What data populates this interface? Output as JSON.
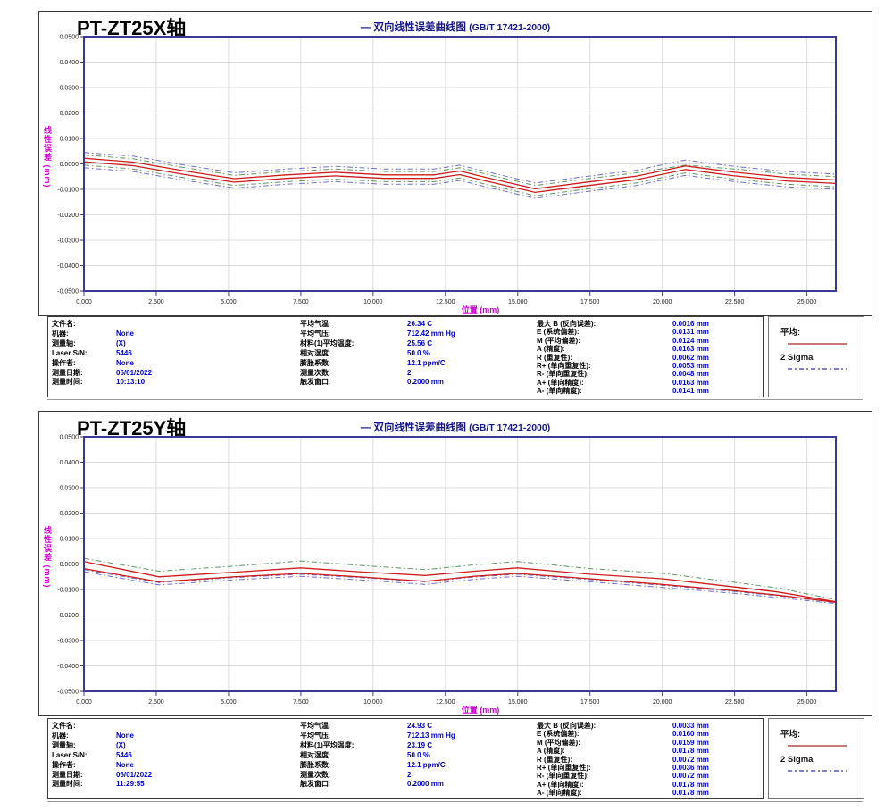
{
  "page": {
    "background": "#ffffff"
  },
  "panels": [
    {
      "axis_title": "PT-ZT25X轴",
      "chart_title": "— 双向线性误差曲线图",
      "chart_title_suffix": "(GB/T 17421-2000)",
      "ylabel": "线性误差 (mm)",
      "xlabel": "位置 (mm)",
      "legend": {
        "mean_label": "平均:",
        "sigma_label": "2 Sigma"
      },
      "info_left": [
        {
          "label": "文件名:",
          "value": ""
        },
        {
          "label": "机器:",
          "value": "None"
        },
        {
          "label": "测量轴:",
          "value": "(X)"
        },
        {
          "label": "Laser S/N:",
          "value": "5446"
        },
        {
          "label": "操作者:",
          "value": "None"
        },
        {
          "label": "测量日期:",
          "value": "06/01/2022"
        },
        {
          "label": "测量时间:",
          "value": "10:13:10"
        }
      ],
      "info_mid": [
        {
          "label": "平均气温:",
          "value": "26.34 C"
        },
        {
          "label": "平均气压:",
          "value": "712.42 mm Hg"
        },
        {
          "label": "材料(1)平均温度:",
          "value": "25.56 C"
        },
        {
          "label": "相对湿度:",
          "value": "50.0 %"
        },
        {
          "label": "膨胀系数:",
          "value": "12.1 ppm/C"
        },
        {
          "label": "测量次数:",
          "value": "2"
        },
        {
          "label": "触发窗口:",
          "value": "0.2000 mm"
        }
      ],
      "info_right": [
        {
          "label": "最大 B (反向误差):",
          "value": "0.0016 mm"
        },
        {
          "label": "E (系统偏差):",
          "value": "0.0131 mm"
        },
        {
          "label": "M (平均偏差):",
          "value": "0.0124 mm"
        },
        {
          "label": "A (精度):",
          "value": "0.0163 mm"
        },
        {
          "label": "R (重复性):",
          "value": "0.0062 mm"
        },
        {
          "label": "R+ (单向重复性):",
          "value": "0.0053 mm"
        },
        {
          "label": "R- (单向重复性):",
          "value": "0.0048 mm"
        },
        {
          "label": "A+ (单向精度):",
          "value": "0.0163 mm"
        },
        {
          "label": "A- (单向精度):",
          "value": "0.0141 mm"
        }
      ]
    },
    {
      "axis_title": "PT-ZT25Y轴",
      "chart_title": "— 双向线性误差曲线图",
      "chart_title_suffix": "(GB/T 17421-2000)",
      "ylabel": "线性误差 (mm)",
      "xlabel": "位置 (mm)",
      "legend": {
        "mean_label": "平均:",
        "sigma_label": "2 Sigma"
      },
      "info_left": [
        {
          "label": "文件名:",
          "value": ""
        },
        {
          "label": "机器:",
          "value": "None"
        },
        {
          "label": "测量轴:",
          "value": "(X)"
        },
        {
          "label": "Laser S/N:",
          "value": "5446"
        },
        {
          "label": "操作者:",
          "value": "None"
        },
        {
          "label": "测量日期:",
          "value": "06/01/2022"
        },
        {
          "label": "测量时间:",
          "value": "11:29:55"
        }
      ],
      "info_mid": [
        {
          "label": "平均气温:",
          "value": "24.93 C"
        },
        {
          "label": "平均气压:",
          "value": "712.13 mm Hg"
        },
        {
          "label": "材料(1)平均温度:",
          "value": "23.19 C"
        },
        {
          "label": "相对湿度:",
          "value": "50.0 %"
        },
        {
          "label": "膨胀系数:",
          "value": "12.1 ppm/C"
        },
        {
          "label": "测量次数:",
          "value": "2"
        },
        {
          "label": "触发窗口:",
          "value": "0.2000 mm"
        }
      ],
      "info_right": [
        {
          "label": "最大 B (反向误差):",
          "value": "0.0033 mm"
        },
        {
          "label": "E (系统偏差):",
          "value": "0.0160 mm"
        },
        {
          "label": "M (平均偏差):",
          "value": "0.0159 mm"
        },
        {
          "label": "A (精度):",
          "value": "0.0178 mm"
        },
        {
          "label": "R (重复性):",
          "value": "0.0072 mm"
        },
        {
          "label": "R+ (单向重复性):",
          "value": "0.0036 mm"
        },
        {
          "label": "R- (单向重复性):",
          "value": "0.0072 mm"
        },
        {
          "label": "A+ (单向精度):",
          "value": "0.0178 mm"
        },
        {
          "label": "A- (单向精度):",
          "value": "0.0178 mm"
        }
      ]
    }
  ],
  "chart_data": [
    {
      "type": "line",
      "title": "— 双向线性误差曲线图 (GB/T 17421-2000)",
      "xlabel": "位置 (mm)",
      "ylabel": "线性误差 (mm)",
      "xlim": [
        0,
        26
      ],
      "ylim": [
        -0.05,
        0.05
      ],
      "xtick_step": 2.5,
      "xtick_max": 25,
      "ytick_step": 0.01,
      "grid": true,
      "legend_position": "below-right",
      "colors": {
        "border": "#3a3a94",
        "grid": "#dcdcdc"
      },
      "x": [
        0,
        1.7,
        3.5,
        5.2,
        7.0,
        8.7,
        10.4,
        12.1,
        13.0,
        13.9,
        15.6,
        17.3,
        19.1,
        20.8,
        22.5,
        24.3,
        26.0
      ],
      "series": [
        {
          "name": "2sigma-upper-blue",
          "color": "#7070c8",
          "dash": "6 3 1.5 3",
          "values": [
            0.0045,
            0.003,
            -0.0005,
            -0.0035,
            -0.002,
            -0.001,
            -0.002,
            -0.002,
            -0.0005,
            -0.003,
            -0.0075,
            -0.005,
            -0.0025,
            0.0015,
            -0.001,
            -0.003,
            -0.004
          ]
        },
        {
          "name": "2sigma-lower-blue",
          "color": "#7070c8",
          "dash": "6 3 1.5 3",
          "values": [
            -0.0015,
            -0.003,
            -0.0065,
            -0.0095,
            -0.008,
            -0.007,
            -0.008,
            -0.008,
            -0.0065,
            -0.009,
            -0.0135,
            -0.011,
            -0.0085,
            -0.0045,
            -0.007,
            -0.009,
            -0.01
          ]
        },
        {
          "name": "2sigma-upper-green",
          "color": "#5f9468",
          "dash": "6 3 1.5 3",
          "values": [
            0.0035,
            0.002,
            -0.0015,
            -0.0045,
            -0.003,
            -0.002,
            -0.003,
            -0.003,
            -0.0015,
            -0.004,
            -0.0085,
            -0.006,
            -0.0035,
            -0.0005,
            -0.002,
            -0.004,
            -0.005
          ]
        },
        {
          "name": "2sigma-lower-green",
          "color": "#5f9468",
          "dash": "6 3 1.5 3",
          "values": [
            -0.0005,
            -0.002,
            -0.0055,
            -0.0085,
            -0.007,
            -0.006,
            -0.007,
            -0.007,
            -0.0055,
            -0.008,
            -0.0125,
            -0.01,
            -0.0075,
            -0.0035,
            -0.006,
            -0.008,
            -0.009
          ]
        },
        {
          "name": "mean-forward",
          "color": "#cc1d1d",
          "width": 1.3,
          "values": [
            0.0022,
            0.0007,
            -0.0028,
            -0.0058,
            -0.0043,
            -0.0033,
            -0.0043,
            -0.0043,
            -0.0028,
            -0.0053,
            -0.0098,
            -0.0073,
            -0.0048,
            -0.0008,
            -0.0033,
            -0.0053,
            -0.0063
          ]
        },
        {
          "name": "mean-reverse",
          "color": "#cc1d1d",
          "width": 1.3,
          "values": [
            0.0008,
            -0.0007,
            -0.0042,
            -0.0072,
            -0.0057,
            -0.0047,
            -0.0057,
            -0.0057,
            -0.0042,
            -0.0067,
            -0.0112,
            -0.0087,
            -0.0062,
            -0.0022,
            -0.0047,
            -0.0067,
            -0.0077
          ]
        }
      ]
    },
    {
      "type": "line",
      "title": "— 双向线性误差曲线图 (GB/T 17421-2000)",
      "xlabel": "位置 (mm)",
      "ylabel": "线性误差 (mm)",
      "xlim": [
        0,
        26
      ],
      "ylim": [
        -0.05,
        0.05
      ],
      "xtick_step": 2.5,
      "xtick_max": 25,
      "ytick_step": 0.01,
      "grid": true,
      "legend_position": "below-right",
      "colors": {
        "border": "#3a3a94",
        "grid": "#dcdcdc"
      },
      "x": [
        0,
        2.6,
        5.2,
        7.5,
        9.5,
        11.8,
        13.5,
        15.0,
        17.5,
        20.0,
        22.5,
        24.0,
        26.0
      ],
      "series": [
        {
          "name": "2sigma-upper-green",
          "color": "#5f9468",
          "dash": "6 3 1.5 3",
          "values": [
            0.0022,
            -0.0028,
            -0.0008,
            0.0012,
            -0.0005,
            -0.0022,
            -0.0003,
            0.001,
            -0.0018,
            -0.0036,
            -0.0072,
            -0.0094,
            -0.014
          ]
        },
        {
          "name": "2sigma-lower-blue",
          "color": "#7070c8",
          "dash": "6 3 1.5 3",
          "values": [
            -0.003,
            -0.0082,
            -0.0062,
            -0.0048,
            -0.0062,
            -0.008,
            -0.006,
            -0.0048,
            -0.007,
            -0.0092,
            -0.0115,
            -0.0132,
            -0.0155
          ]
        },
        {
          "name": "2sigma-mid-blue",
          "color": "#7070c8",
          "dash": "6 3 1.5 3",
          "values": [
            -0.0022,
            -0.0073,
            -0.0053,
            -0.004,
            -0.0053,
            -0.007,
            -0.0051,
            -0.004,
            -0.0061,
            -0.0083,
            -0.0108,
            -0.0125,
            -0.0151
          ]
        },
        {
          "name": "mean-reverse",
          "color": "#cc1d1d",
          "width": 1.3,
          "values": [
            0.001,
            -0.005,
            -0.0032,
            -0.0015,
            -0.003,
            -0.0045,
            -0.0028,
            -0.0015,
            -0.004,
            -0.0058,
            -0.009,
            -0.011,
            -0.0148
          ]
        },
        {
          "name": "mean-forward",
          "color": "#cc1d1d",
          "width": 1.3,
          "values": [
            -0.0018,
            -0.007,
            -0.005,
            -0.0037,
            -0.005,
            -0.0068,
            -0.0048,
            -0.0037,
            -0.0058,
            -0.008,
            -0.0105,
            -0.0122,
            -0.015
          ]
        }
      ]
    }
  ]
}
